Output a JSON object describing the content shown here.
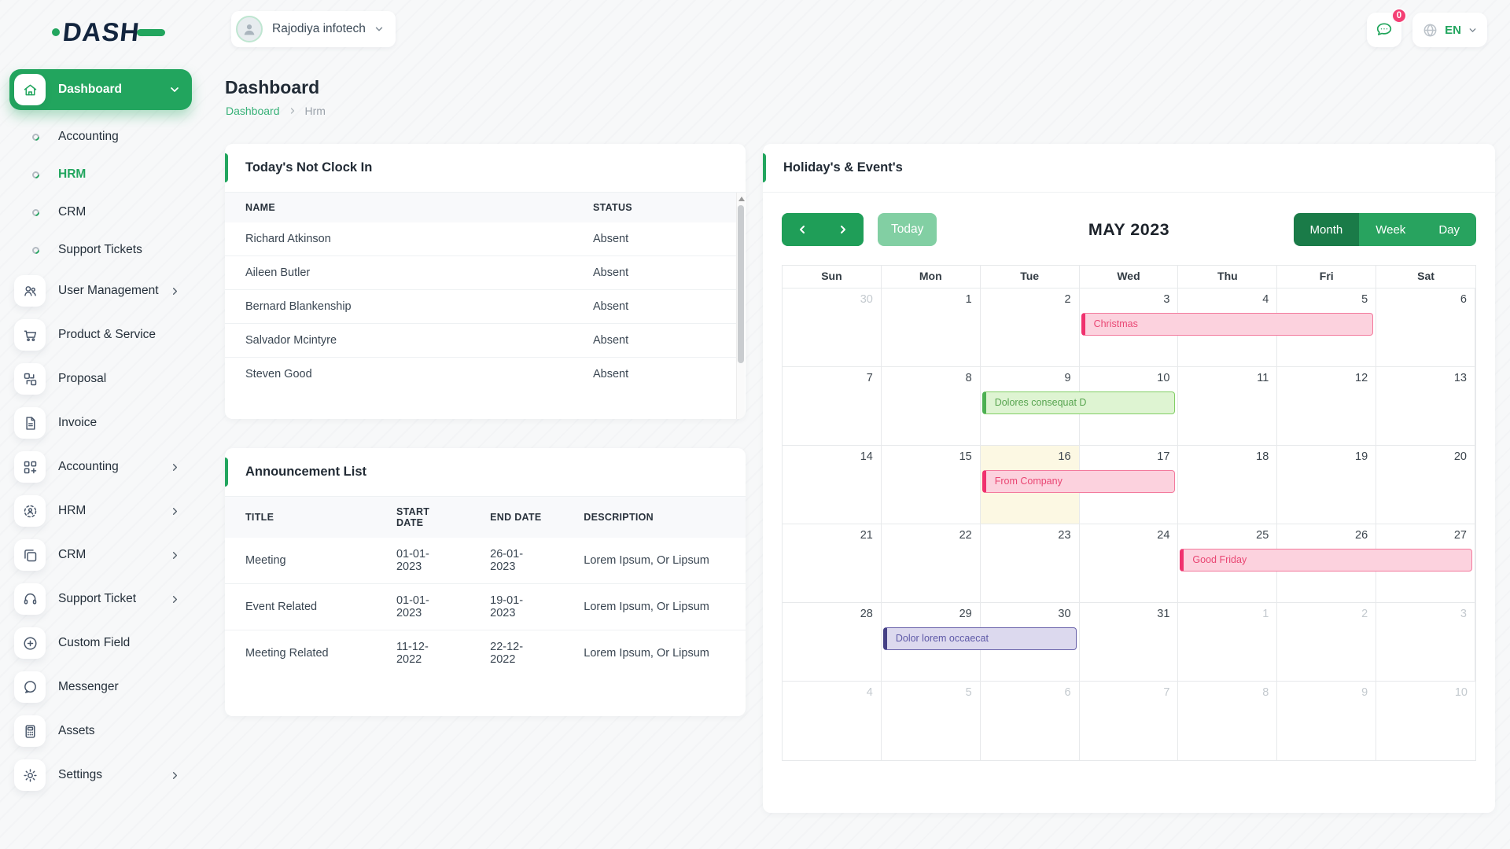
{
  "brand": {
    "logo_text": "DASH"
  },
  "topbar": {
    "company": {
      "name": "Rajodiya infotech"
    },
    "messages": {
      "badge": "0"
    },
    "language": {
      "code": "EN"
    }
  },
  "sidebar": {
    "items": [
      {
        "label": "Dashboard",
        "icon": "home",
        "type": "parent",
        "active": true
      },
      {
        "label": "Accounting",
        "type": "sub",
        "active": false
      },
      {
        "label": "HRM",
        "type": "sub",
        "active": true
      },
      {
        "label": "CRM",
        "type": "sub",
        "active": false
      },
      {
        "label": "Support Tickets",
        "type": "sub",
        "active": false
      },
      {
        "label": "User Management",
        "icon": "users",
        "type": "item",
        "chevron": true
      },
      {
        "label": "Product & Service",
        "icon": "cart",
        "type": "item",
        "chevron": false
      },
      {
        "label": "Proposal",
        "icon": "proposal",
        "type": "item",
        "chevron": false
      },
      {
        "label": "Invoice",
        "icon": "invoice",
        "type": "item",
        "chevron": false
      },
      {
        "label": "Accounting",
        "icon": "accounting",
        "type": "item",
        "chevron": true
      },
      {
        "label": "HRM",
        "icon": "hrm",
        "type": "item",
        "chevron": true
      },
      {
        "label": "CRM",
        "icon": "crm",
        "type": "item",
        "chevron": true
      },
      {
        "label": "Support Ticket",
        "icon": "headset",
        "type": "item",
        "chevron": true
      },
      {
        "label": "Custom Field",
        "icon": "plus-circle",
        "type": "item",
        "chevron": false
      },
      {
        "label": "Messenger",
        "icon": "message",
        "type": "item",
        "chevron": false
      },
      {
        "label": "Assets",
        "icon": "calculator",
        "type": "item",
        "chevron": false
      },
      {
        "label": "Settings",
        "icon": "gear",
        "type": "item",
        "chevron": true
      }
    ]
  },
  "page": {
    "title": "Dashboard",
    "breadcrumb": [
      "Dashboard",
      "Hrm"
    ]
  },
  "clockin": {
    "title": "Today's Not Clock In",
    "columns": [
      "NAME",
      "STATUS"
    ],
    "rows": [
      [
        "Richard Atkinson",
        "Absent"
      ],
      [
        "Aileen Butler",
        "Absent"
      ],
      [
        "Bernard Blankenship",
        "Absent"
      ],
      [
        "Salvador Mcintyre",
        "Absent"
      ],
      [
        "Steven Good",
        "Absent"
      ]
    ]
  },
  "announcements": {
    "title": "Announcement List",
    "columns": [
      "TITLE",
      "START DATE",
      "END DATE",
      "DESCRIPTION"
    ],
    "rows": [
      [
        "Meeting",
        "01-01-2023",
        "26-01-2023",
        "Lorem Ipsum, Or Lipsum"
      ],
      [
        "Event Related",
        "01-01-2023",
        "19-01-2023",
        "Lorem Ipsum, Or Lipsum"
      ],
      [
        "Meeting Related",
        "11-12-2022",
        "22-12-2022",
        "Lorem Ipsum, Or Lipsum"
      ]
    ]
  },
  "calendar": {
    "title": "Holiday's & Event's",
    "today_label": "Today",
    "month_title": "MAY 2023",
    "views": [
      "Month",
      "Week",
      "Day"
    ],
    "active_view": "Month",
    "weekdays": [
      "Sun",
      "Mon",
      "Tue",
      "Wed",
      "Thu",
      "Fri",
      "Sat"
    ],
    "weeks": [
      [
        {
          "d": 30,
          "muted": true
        },
        {
          "d": 1
        },
        {
          "d": 2
        },
        {
          "d": 3
        },
        {
          "d": 4
        },
        {
          "d": 5
        },
        {
          "d": 6
        }
      ],
      [
        {
          "d": 7
        },
        {
          "d": 8
        },
        {
          "d": 9
        },
        {
          "d": 10
        },
        {
          "d": 11
        },
        {
          "d": 12
        },
        {
          "d": 13
        }
      ],
      [
        {
          "d": 14
        },
        {
          "d": 15
        },
        {
          "d": 16
        },
        {
          "d": 17
        },
        {
          "d": 18
        },
        {
          "d": 19
        },
        {
          "d": 20
        }
      ],
      [
        {
          "d": 21
        },
        {
          "d": 22
        },
        {
          "d": 23
        },
        {
          "d": 24
        },
        {
          "d": 25
        },
        {
          "d": 26
        },
        {
          "d": 27
        }
      ],
      [
        {
          "d": 28
        },
        {
          "d": 29
        },
        {
          "d": 30
        },
        {
          "d": 31
        },
        {
          "d": 1,
          "muted": true
        },
        {
          "d": 2,
          "muted": true
        },
        {
          "d": 3,
          "muted": true
        }
      ],
      [
        {
          "d": 4,
          "muted": true
        },
        {
          "d": 5,
          "muted": true
        },
        {
          "d": 6,
          "muted": true
        },
        {
          "d": 7,
          "muted": true
        },
        {
          "d": 8,
          "muted": true
        },
        {
          "d": 9,
          "muted": true
        },
        {
          "d": 10,
          "muted": true
        }
      ]
    ],
    "today_cell": {
      "week": 2,
      "col": 2
    },
    "events": [
      {
        "label": "Christmas",
        "week": 0,
        "col": 3,
        "span": 3,
        "color": "pink"
      },
      {
        "label": "Dolores consequat D",
        "week": 1,
        "col": 2,
        "span": 2,
        "color": "green"
      },
      {
        "label": "From Company",
        "week": 2,
        "col": 2,
        "span": 2,
        "color": "pink"
      },
      {
        "label": "Good Friday",
        "week": 3,
        "col": 4,
        "span": 3,
        "color": "pink"
      },
      {
        "label": "Dolor lorem occaecat",
        "week": 4,
        "col": 1,
        "span": 2,
        "color": "purple"
      }
    ],
    "colors": {
      "primary_green": "#22a55e",
      "view_active": "#1a7b48",
      "today_cell_bg": "#fcf8e3",
      "event_pink": "#f0316e",
      "event_green": "#4cb052",
      "event_purple": "#454085"
    }
  }
}
